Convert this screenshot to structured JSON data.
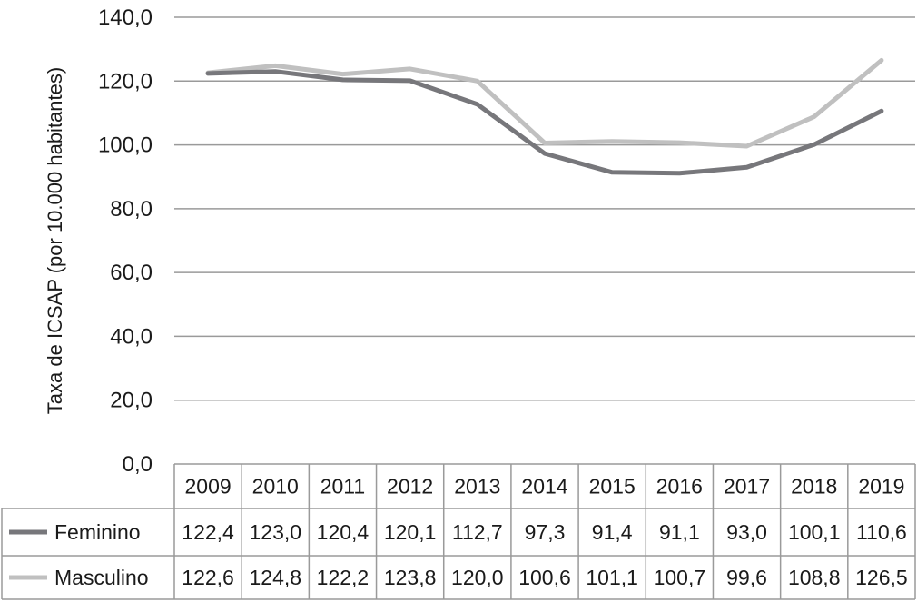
{
  "chart_data": {
    "type": "line",
    "ylabel": "Taxa de ICSAP (por 10.000 habitantes)",
    "ylim": [
      0,
      140
    ],
    "y_ticks": [
      "0,0",
      "20,0",
      "40,0",
      "60,0",
      "80,0",
      "100,0",
      "120,0",
      "140,0"
    ],
    "grid": true,
    "legend": "table-left",
    "categories": [
      "2009",
      "2010",
      "2011",
      "2012",
      "2013",
      "2014",
      "2015",
      "2016",
      "2017",
      "2018",
      "2019"
    ],
    "series": [
      {
        "name": "Feminino",
        "color": "#77777b",
        "values": [
          122.4,
          123.0,
          120.4,
          120.1,
          112.7,
          97.3,
          91.4,
          91.1,
          93.0,
          100.1,
          110.6
        ],
        "labels": [
          "122,4",
          "123,0",
          "120,4",
          "120,1",
          "112,7",
          "97,3",
          "91,4",
          "91,1",
          "93,0",
          "100,1",
          "110,6"
        ]
      },
      {
        "name": "Masculino",
        "color": "#c0c0c0",
        "values": [
          122.6,
          124.8,
          122.2,
          123.8,
          120.0,
          100.6,
          101.1,
          100.7,
          99.6,
          108.8,
          126.5
        ],
        "labels": [
          "122,6",
          "124,8",
          "122,2",
          "123,8",
          "120,0",
          "100,6",
          "101,1",
          "100,7",
          "99,6",
          "108,8",
          "126,5"
        ]
      }
    ]
  }
}
